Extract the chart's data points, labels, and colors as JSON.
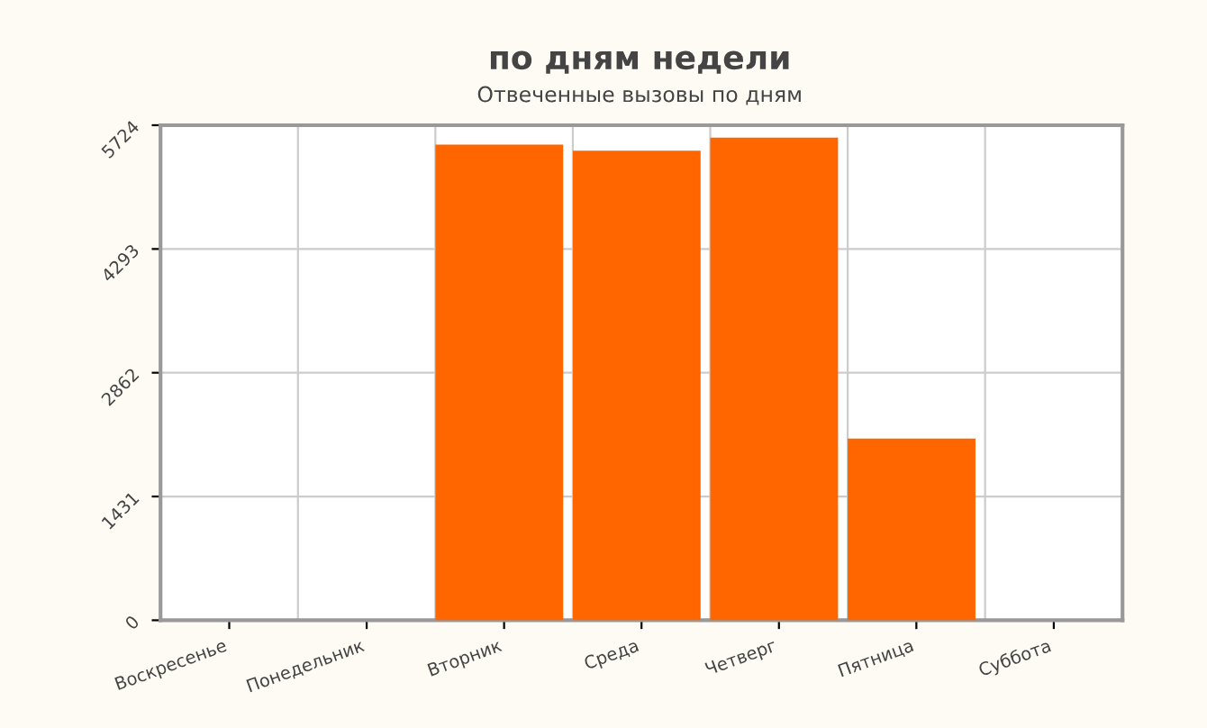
{
  "chart_data": {
    "type": "bar",
    "title": "по дням недели",
    "subtitle": "Отвеченные вызовы по дням",
    "categories": [
      "Воскресенье",
      "Понедельник",
      "Вторник",
      "Среда",
      "Четверг",
      "Пятница",
      "Суббота"
    ],
    "values": [
      0,
      0,
      5500,
      5430,
      5580,
      2100,
      0
    ],
    "color": "#ff6600",
    "ylim": [
      0,
      5724
    ],
    "yticks": [
      0,
      1431,
      2862,
      4293,
      5724
    ],
    "grid": true
  }
}
